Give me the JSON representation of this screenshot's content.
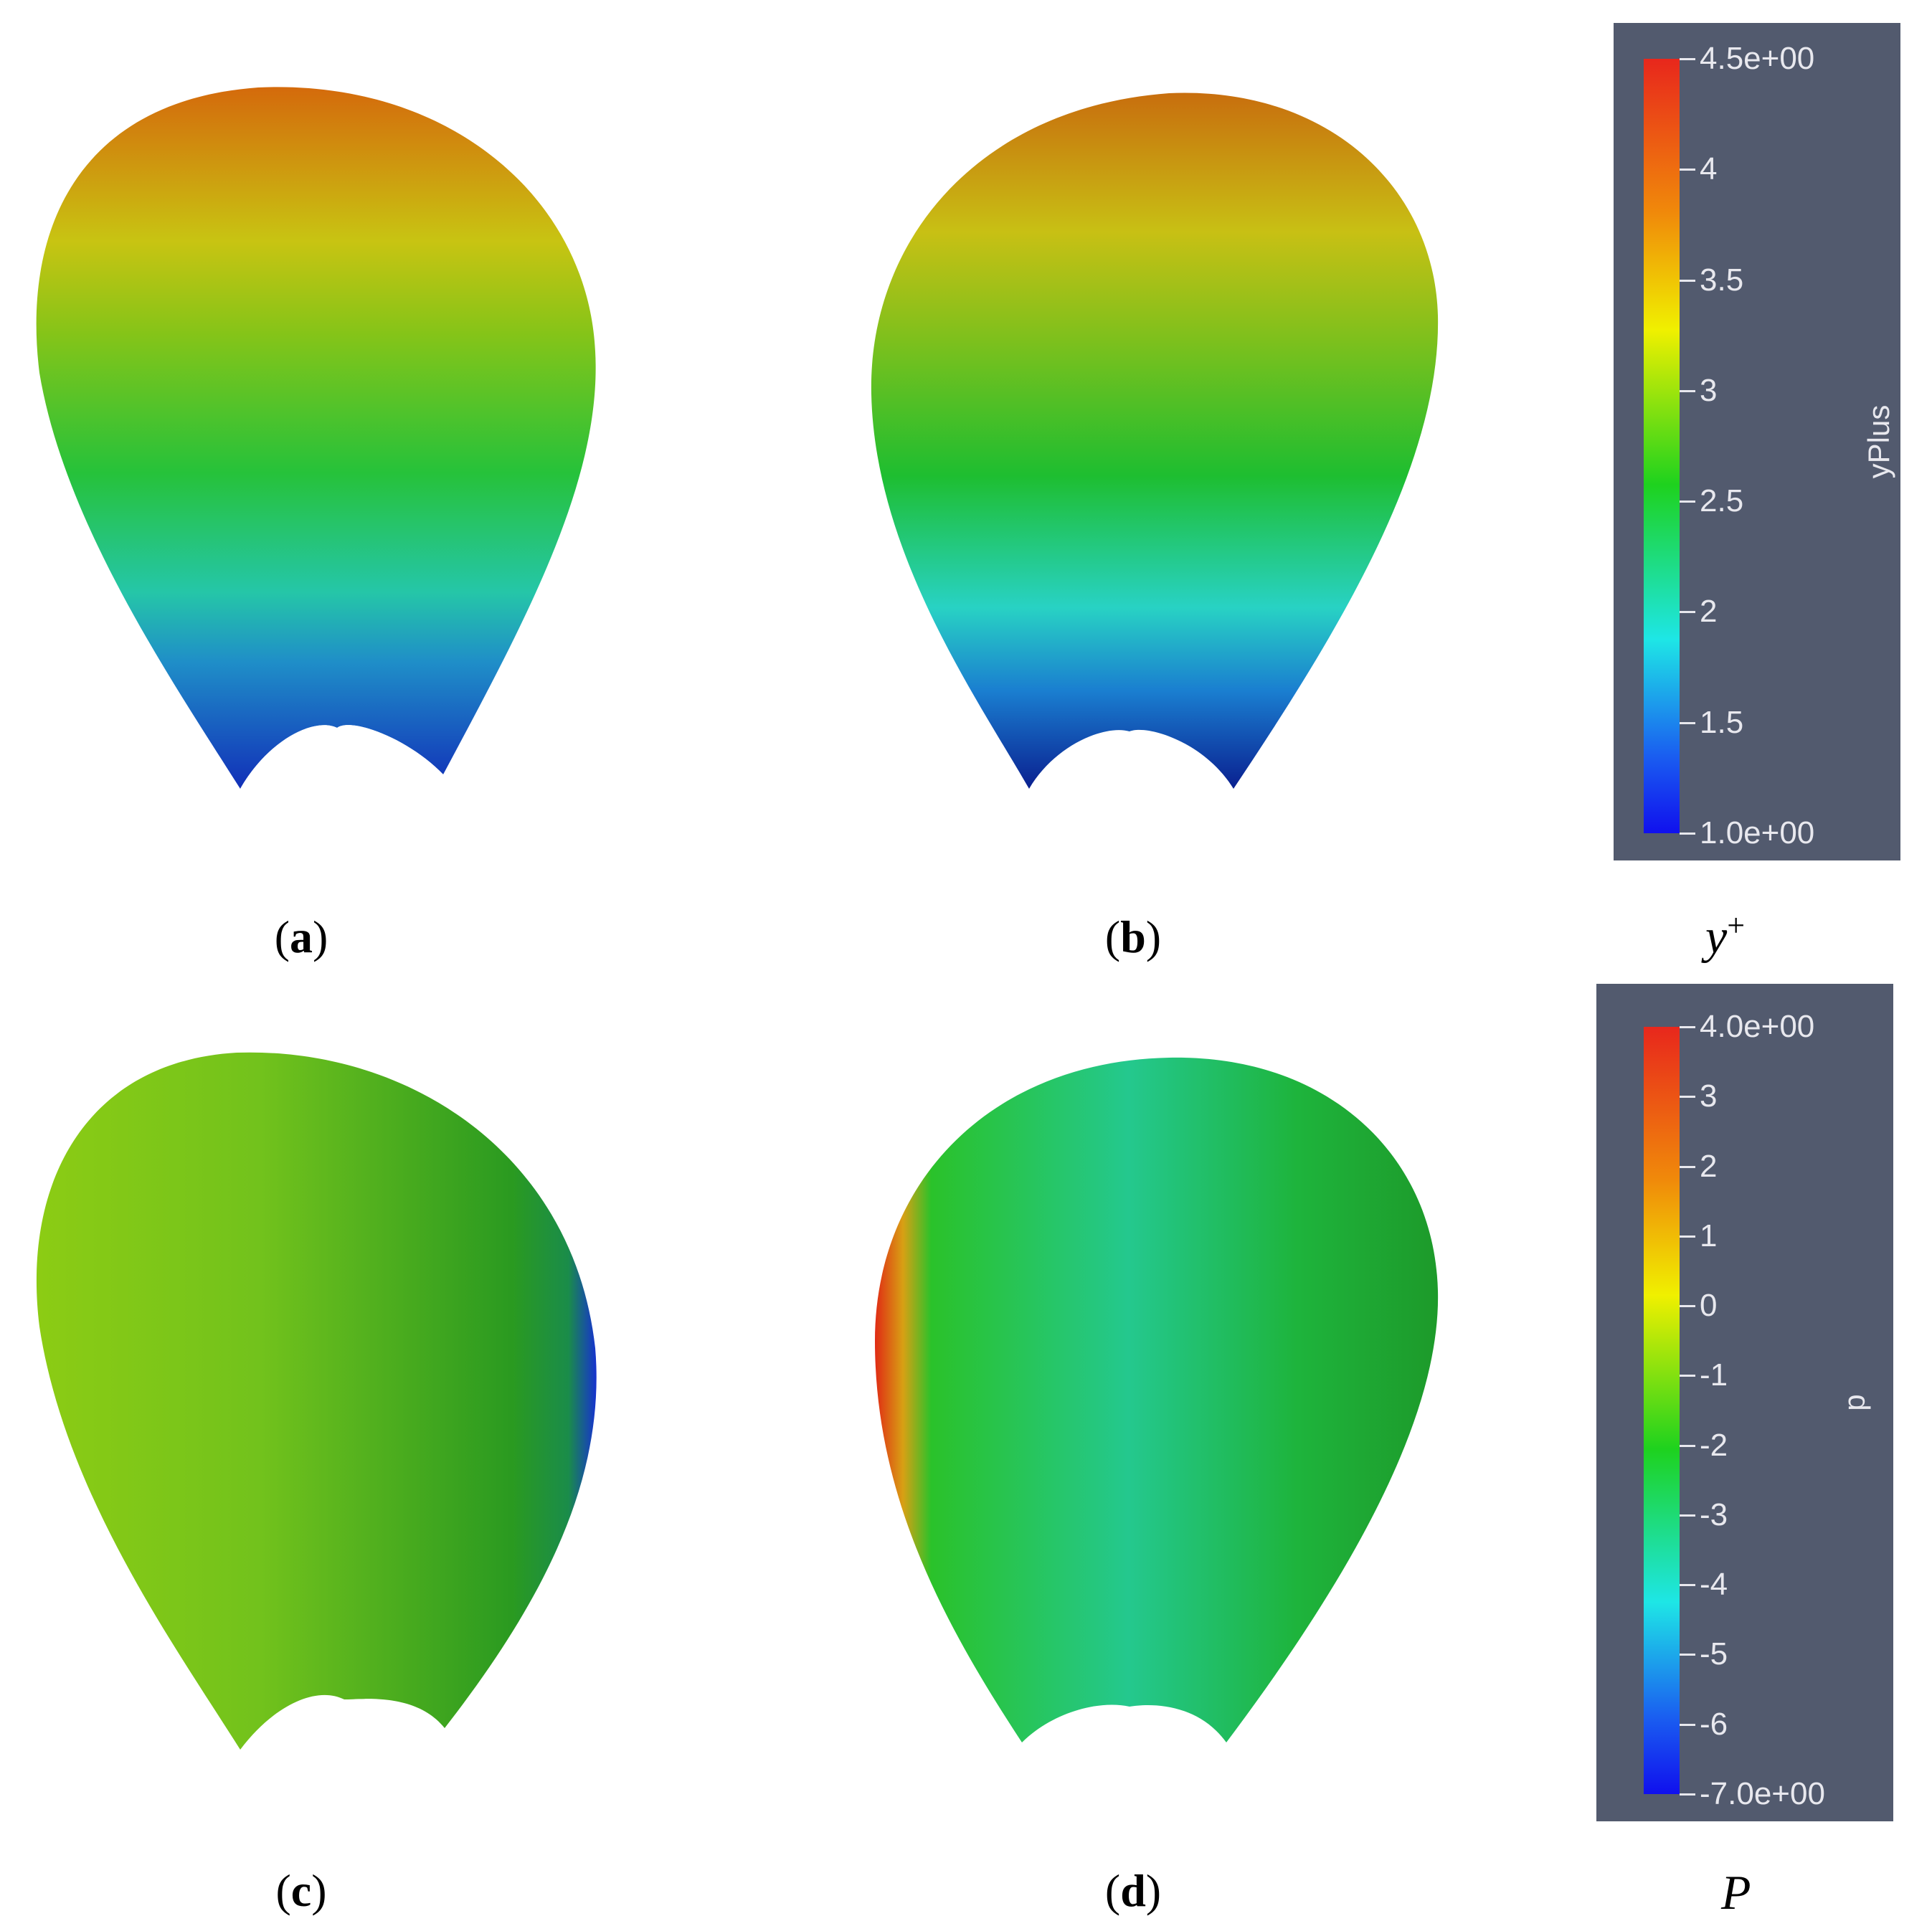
{
  "panels": [
    {
      "id": "a",
      "caption": "a"
    },
    {
      "id": "b",
      "caption": "b"
    },
    {
      "id": "c",
      "caption": "c"
    },
    {
      "id": "d",
      "caption": "d"
    }
  ],
  "colorbar_yplus": {
    "title": "yPlus",
    "ticks": [
      "4.5e+00",
      "4",
      "3.5",
      "3",
      "2.5",
      "2",
      "1.5",
      "1.0e+00"
    ],
    "variable_label": "y",
    "variable_superscript": "+"
  },
  "colorbar_p": {
    "title": "p",
    "ticks": [
      "4.0e+00",
      "3",
      "2",
      "1",
      "0",
      "-1",
      "-2",
      "-3",
      "-4",
      "-5",
      "-6",
      "-7.0e+00"
    ],
    "variable_label": "P"
  },
  "colors": {
    "colorbar_background": "#525a6e",
    "jet_red": "#e8271c",
    "jet_yellow": "#f0f000",
    "jet_green": "#1ed21e",
    "jet_cyan": "#1ee6e6",
    "jet_blue": "#1010ee"
  }
}
